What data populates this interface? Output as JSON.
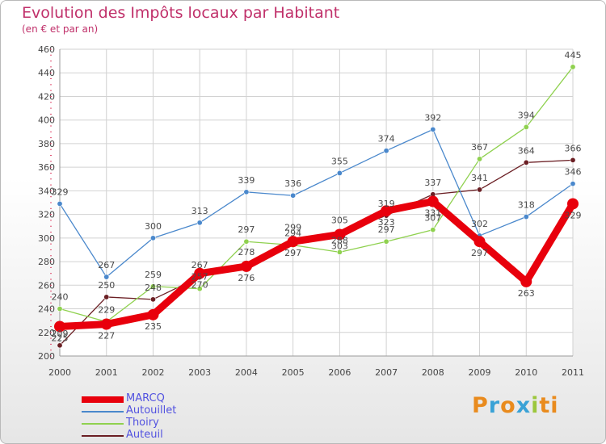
{
  "chart_data": {
    "type": "line",
    "title": "Evolution des Impôts locaux par Habitant",
    "subtitle": "(en € et par an)",
    "xlabel": "",
    "ylabel": "",
    "ylim": [
      200,
      460
    ],
    "yticks": [
      200,
      220,
      240,
      260,
      280,
      300,
      320,
      340,
      360,
      380,
      400,
      420,
      440,
      460
    ],
    "grid": true,
    "legend_position": "bottom-left",
    "categories": [
      "2000",
      "2001",
      "2002",
      "2003",
      "2004",
      "2005",
      "2006",
      "2007",
      "2008",
      "2009",
      "2010",
      "2011"
    ],
    "series": [
      {
        "name": "Auteuil",
        "color": "#6b1f24",
        "values": [
          209,
          250,
          248,
          267,
          278,
          299,
          305,
          319,
          337,
          341,
          364,
          366
        ]
      },
      {
        "name": "Thoiry",
        "color": "#8fd14f",
        "values": [
          240,
          229,
          259,
          257,
          297,
          294,
          288,
          297,
          307,
          367,
          394,
          445
        ]
      },
      {
        "name": "Autouillet",
        "color": "#4a88cc",
        "values": [
          329,
          267,
          300,
          313,
          339,
          336,
          355,
          374,
          392,
          302,
          318,
          346
        ]
      },
      {
        "name": "MARCQ",
        "color": "#e8000c",
        "values": [
          225,
          227,
          235,
          270,
          276,
          297,
          303,
          323,
          331,
          297,
          263,
          329
        ]
      }
    ],
    "legend_order": [
      "MARCQ",
      "Autouillet",
      "Thoiry",
      "Auteuil"
    ]
  },
  "brand": {
    "letters": [
      "P",
      "r",
      "o",
      "x",
      "i",
      "ti"
    ]
  }
}
